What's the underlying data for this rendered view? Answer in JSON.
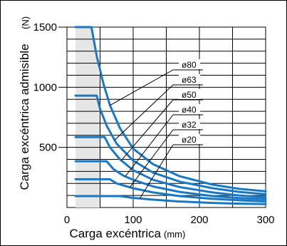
{
  "chart_data": {
    "type": "line",
    "title": "",
    "xlabel": "Carga excéntrica",
    "xunit": "(mm)",
    "ylabel": "Carga excéntrica admisible",
    "yunit": "(N)",
    "xlim": [
      0,
      300
    ],
    "ylim": [
      0,
      1500
    ],
    "xticks": [
      0,
      100,
      200,
      300
    ],
    "yticks": [
      500,
      1000,
      1500
    ],
    "x_minor_step": 50,
    "y_minor_step": 100,
    "series": [
      {
        "name": "ø80",
        "points": [
          [
            13,
            1500
          ],
          [
            37,
            1500
          ],
          [
            45,
            1260
          ],
          [
            55,
            1030
          ],
          [
            65,
            850
          ],
          [
            80,
            660
          ],
          [
            100,
            490
          ],
          [
            130,
            360
          ],
          [
            170,
            260
          ],
          [
            220,
            190
          ],
          [
            260,
            155
          ],
          [
            300,
            135
          ]
        ]
      },
      {
        "name": "ø63",
        "points": [
          [
            13,
            930
          ],
          [
            45,
            930
          ],
          [
            50,
            820
          ],
          [
            60,
            680
          ],
          [
            75,
            530
          ],
          [
            100,
            390
          ],
          [
            130,
            290
          ],
          [
            170,
            215
          ],
          [
            220,
            160
          ],
          [
            260,
            130
          ],
          [
            300,
            110
          ]
        ]
      },
      {
        "name": "ø50",
        "points": [
          [
            13,
            585
          ],
          [
            57,
            585
          ],
          [
            65,
            500
          ],
          [
            80,
            400
          ],
          [
            100,
            310
          ],
          [
            130,
            230
          ],
          [
            170,
            170
          ],
          [
            220,
            125
          ],
          [
            260,
            100
          ],
          [
            300,
            85
          ]
        ]
      },
      {
        "name": "ø40",
        "points": [
          [
            13,
            385
          ],
          [
            60,
            385
          ],
          [
            70,
            320
          ],
          [
            85,
            265
          ],
          [
            100,
            230
          ],
          [
            130,
            175
          ],
          [
            170,
            130
          ],
          [
            220,
            95
          ],
          [
            260,
            78
          ],
          [
            300,
            68
          ]
        ]
      },
      {
        "name": "ø32",
        "points": [
          [
            13,
            235
          ],
          [
            65,
            235
          ],
          [
            75,
            200
          ],
          [
            100,
            160
          ],
          [
            130,
            125
          ],
          [
            170,
            95
          ],
          [
            220,
            72
          ],
          [
            260,
            60
          ],
          [
            300,
            50
          ]
        ]
      },
      {
        "name": "ø20",
        "points": [
          [
            13,
            95
          ],
          [
            80,
            95
          ],
          [
            100,
            80
          ],
          [
            130,
            65
          ],
          [
            170,
            50
          ],
          [
            220,
            38
          ],
          [
            260,
            32
          ],
          [
            300,
            28
          ]
        ]
      }
    ],
    "shaded_region": "under ø80 curve up to x = 50",
    "colors": {
      "curve": "#1779c6",
      "shade": "#e6e6e6"
    },
    "grid": true,
    "legend_placement": "right"
  }
}
